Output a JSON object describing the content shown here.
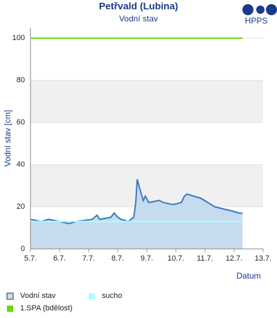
{
  "logo": "HPPS",
  "chart_data": {
    "type": "line",
    "title": "Petřvald (Lubina)",
    "subtitle": "Vodní stav",
    "y_label": "Vodní stav [cm]",
    "x_label": "Datum",
    "xlim": [
      5,
      13
    ],
    "xticks": [
      {
        "value": 5,
        "label": "5.7."
      },
      {
        "value": 6,
        "label": "6.7."
      },
      {
        "value": 7,
        "label": "7.7."
      },
      {
        "value": 8,
        "label": "8.7."
      },
      {
        "value": 9,
        "label": "9.7."
      },
      {
        "value": 10,
        "label": "10.7."
      },
      {
        "value": 11,
        "label": "11.7."
      },
      {
        "value": 12,
        "label": "12.7."
      },
      {
        "value": 13,
        "label": "13.7."
      }
    ],
    "ylim": [
      0,
      105
    ],
    "yticks": [
      0,
      20,
      40,
      60,
      80,
      100
    ],
    "grid": true,
    "series": [
      {
        "name": "Vodní stav",
        "color": "#3a78c2",
        "fill": "#c6dcee",
        "x": [
          5.0,
          5.38,
          5.62,
          6.0,
          6.33,
          6.57,
          7.12,
          7.29,
          7.38,
          7.76,
          7.88,
          8.0,
          8.12,
          8.36,
          8.55,
          8.62,
          8.67,
          8.71,
          8.81,
          8.88,
          8.95,
          9.07,
          9.43,
          9.57,
          9.9,
          10.19,
          10.29,
          10.38,
          10.62,
          10.86,
          11.1,
          11.33,
          11.62,
          11.93,
          12.17,
          12.29
        ],
        "values": [
          14,
          13,
          14,
          13,
          12,
          13,
          14,
          16,
          14,
          15,
          17,
          15,
          14,
          13,
          15,
          22,
          33,
          31,
          26,
          23,
          25,
          22,
          23,
          22,
          21,
          22,
          25,
          26,
          25,
          24,
          22,
          20,
          19,
          18,
          17,
          17
        ]
      },
      {
        "name": "sucho",
        "color": "#aaffff",
        "x": [
          5,
          12.29
        ],
        "values": [
          13,
          13
        ]
      },
      {
        "name": "1.SPA (bdělost)",
        "color": "#66dd00",
        "x": [
          5,
          12.29
        ],
        "values": [
          100,
          100
        ]
      }
    ]
  }
}
